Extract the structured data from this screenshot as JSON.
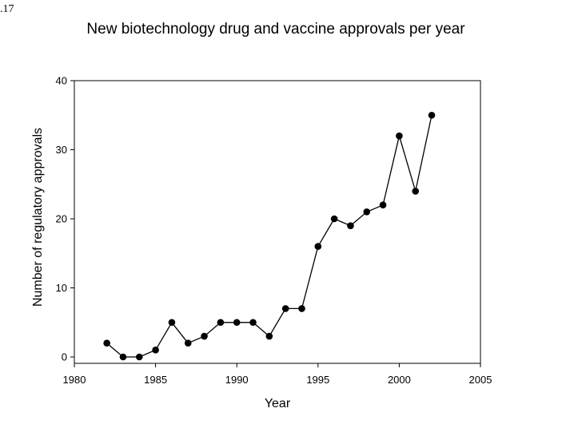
{
  "corner_label": ".17",
  "chart_data": {
    "type": "line",
    "title": "New biotechnology drug and vaccine approvals per year",
    "xlabel": "Year",
    "ylabel": "Number of regulatory approvals",
    "xlim": [
      1980,
      2005
    ],
    "ylim": [
      0,
      40
    ],
    "xticks": [
      1980,
      1985,
      1990,
      1995,
      2000,
      2005
    ],
    "yticks": [
      0,
      10,
      20,
      30,
      40
    ],
    "grid": false,
    "marker": "filled-circle",
    "line_color": "#000000",
    "x": [
      1982,
      1983,
      1984,
      1985,
      1986,
      1987,
      1988,
      1989,
      1990,
      1991,
      1992,
      1993,
      1994,
      1995,
      1996,
      1997,
      1998,
      1999,
      2000,
      2001,
      2002
    ],
    "values": [
      2,
      0,
      0,
      1,
      5,
      2,
      3,
      5,
      5,
      5,
      3,
      7,
      7,
      16,
      20,
      19,
      21,
      22,
      32,
      24,
      35
    ]
  }
}
